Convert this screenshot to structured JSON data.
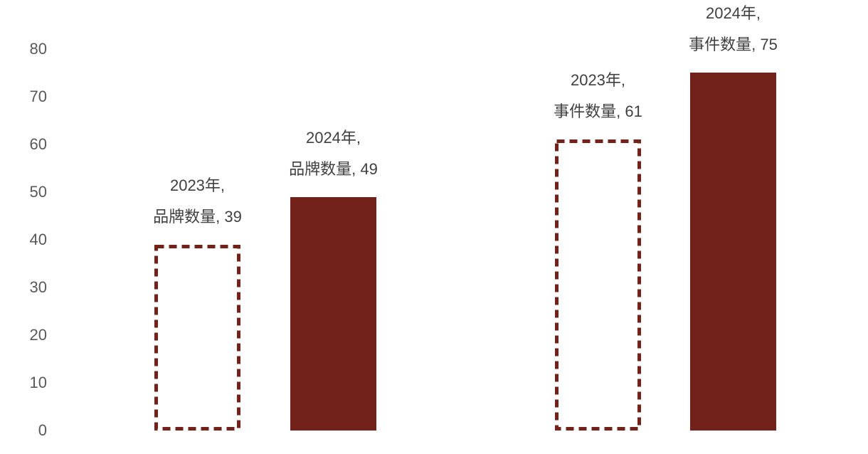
{
  "chart_data": {
    "type": "bar",
    "title": "",
    "xlabel": "",
    "ylabel": "",
    "ylim": [
      0,
      80
    ],
    "y_ticks": [
      0,
      10,
      20,
      30,
      40,
      50,
      60,
      70,
      80
    ],
    "grid": false,
    "legend_position": "none",
    "axis_lines": false,
    "categories": [
      "2023年 品牌数量",
      "2024年 品牌数量",
      "2023年 事件数量",
      "2024年 事件数量"
    ],
    "bars": [
      {
        "year": "2023年",
        "series": "品牌数量",
        "value": 39,
        "style": "dashed",
        "label_line1": "2023年,",
        "label_line2": "品牌数量, 39"
      },
      {
        "year": "2024年",
        "series": "品牌数量",
        "value": 49,
        "style": "solid",
        "label_line1": "2024年,",
        "label_line2": "品牌数量, 49"
      },
      {
        "year": "2023年",
        "series": "事件数量",
        "value": 61,
        "style": "dashed",
        "label_line1": "2023年,",
        "label_line2": "事件数量, 61"
      },
      {
        "year": "2024年",
        "series": "事件数量",
        "value": 75,
        "style": "solid",
        "label_line1": "2024年,",
        "label_line2": "事件数量, 75"
      }
    ],
    "colors": {
      "bar_solid": "#72211B",
      "bar_dashed_border": "#72211B",
      "tick_label": "#595959",
      "data_label": "#404040",
      "background": "#FFFFFF"
    }
  }
}
